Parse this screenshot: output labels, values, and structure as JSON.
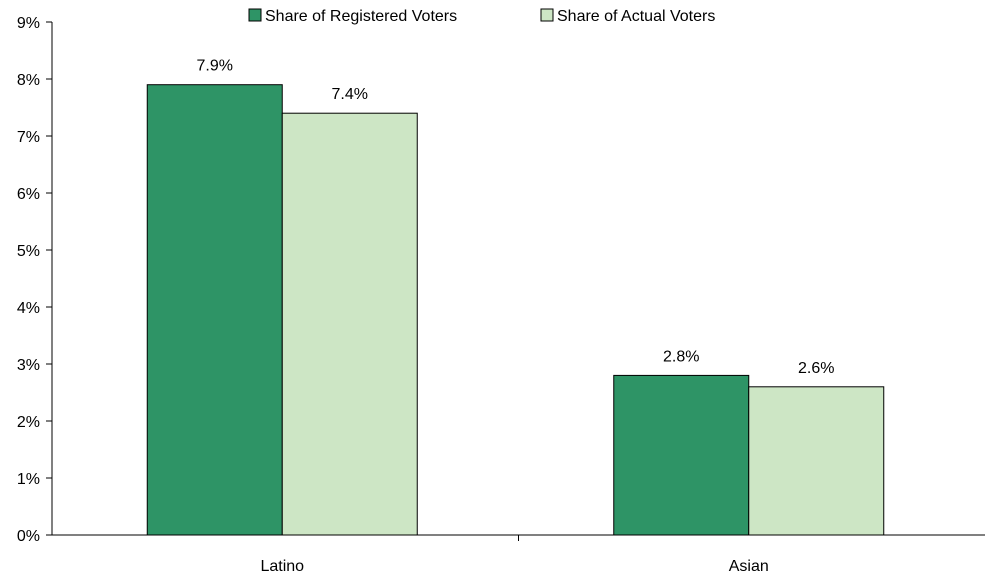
{
  "chart_data": {
    "type": "bar",
    "title": "",
    "xlabel": "",
    "ylabel": "",
    "categories": [
      "Latino",
      "Asian"
    ],
    "series": [
      {
        "name": "Share of Registered Voters",
        "values": [
          7.9,
          2.8
        ],
        "color": "#2e9466"
      },
      {
        "name": "Share of Actual Voters",
        "values": [
          7.4,
          2.6
        ],
        "color": "#cde6c5"
      }
    ],
    "ylim": [
      0,
      9
    ],
    "yticks": [
      0,
      1,
      2,
      3,
      4,
      5,
      6,
      7,
      8,
      9
    ],
    "ytick_labels": [
      "0%",
      "1%",
      "2%",
      "3%",
      "4%",
      "5%",
      "6%",
      "7%",
      "8%",
      "9%"
    ],
    "data_labels": [
      [
        "7.9%",
        "2.8%"
      ],
      [
        "7.4%",
        "2.6%"
      ]
    ],
    "legend_position": "top-center",
    "grid": false
  }
}
